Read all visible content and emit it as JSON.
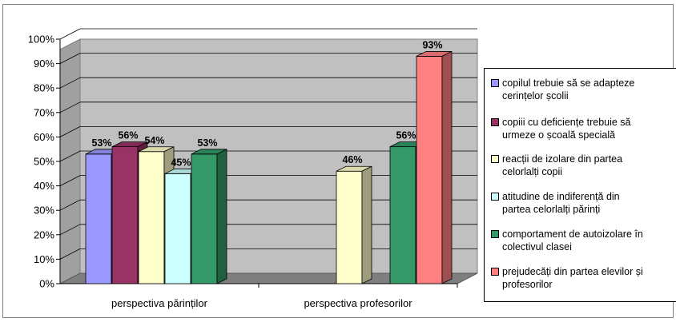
{
  "chart_data": {
    "type": "bar",
    "categories": [
      "perspectiva părinților",
      "perspectiva profesorilor"
    ],
    "ylim": [
      0,
      100
    ],
    "yticks": [
      "0%",
      "10%",
      "20%",
      "30%",
      "40%",
      "50%",
      "60%",
      "70%",
      "80%",
      "90%",
      "100%"
    ],
    "grid": true,
    "legend_position": "right",
    "series": [
      {
        "name": "copilul trebuie să se adapteze cerințelor școlii",
        "color": "#9999ff",
        "values": [
          53,
          null
        ]
      },
      {
        "name": "copiii cu deficiențe trebuie să urmeze o școală specială",
        "color": "#993366",
        "values": [
          56,
          null
        ]
      },
      {
        "name": "reacții de izolare din partea celorlalți copii",
        "color": "#ffffcc",
        "values": [
          54,
          46
        ]
      },
      {
        "name": "atitudine de indiferență din partea celorlalți părinți",
        "color": "#ccffff",
        "values": [
          45,
          null
        ]
      },
      {
        "name": "comportament de autoizolare în colectivul clasei",
        "color": "#339966",
        "values": [
          53,
          56
        ]
      },
      {
        "name": "prejudecăți din partea elevilor și profesorilor",
        "color": "#ff8080",
        "values": [
          null,
          93
        ]
      }
    ],
    "data_labels": [
      "53%",
      "56%",
      "54%",
      "45%",
      "53%",
      "46%",
      "56%",
      "93%"
    ]
  },
  "legend": [
    {
      "line1": "copilul trebuie să se adapteze",
      "line2": "cerințelor școlii"
    },
    {
      "line1": "copiii cu deficiențe trebuie să",
      "line2": "urmeze o școală specială"
    },
    {
      "line1": "reacții de izolare din partea",
      "line2": "celorlalți copii"
    },
    {
      "line1": "atitudine de indiferență din",
      "line2": "partea celorlalți părinți"
    },
    {
      "line1": "comportament de autoizolare în",
      "line2": "colectivul clasei"
    },
    {
      "line1": "prejudecăți din partea elevilor și",
      "line2": "profesorilor"
    }
  ]
}
